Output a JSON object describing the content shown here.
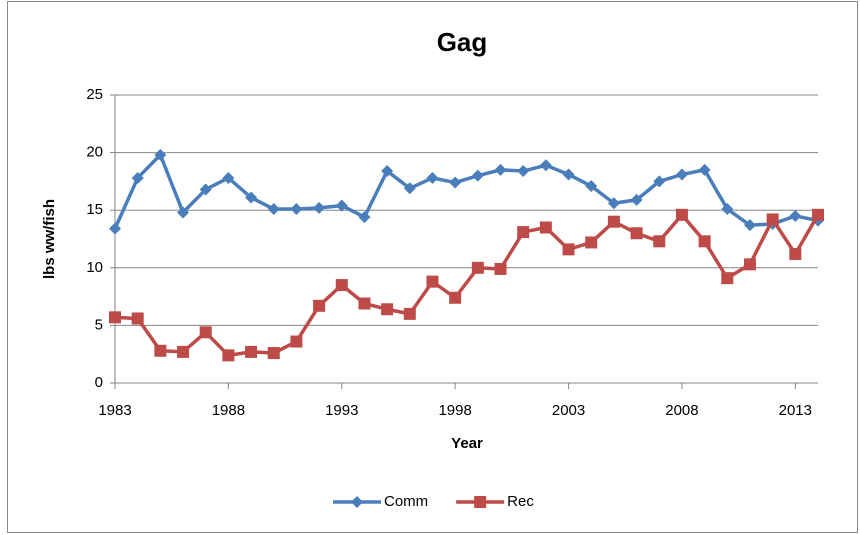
{
  "chart_data": {
    "type": "line",
    "title": "Gag",
    "x_label": "Year",
    "y_label": "lbs ww/fish",
    "x": [
      1983,
      1984,
      1985,
      1986,
      1987,
      1988,
      1989,
      1990,
      1991,
      1992,
      1993,
      1994,
      1995,
      1996,
      1997,
      1998,
      1999,
      2000,
      2001,
      2002,
      2003,
      2004,
      2005,
      2006,
      2007,
      2008,
      2009,
      2010,
      2011,
      2012,
      2013,
      2014
    ],
    "series": [
      {
        "name": "Comm",
        "color": "#4a7ebb",
        "marker": "diamond",
        "values": [
          13.4,
          17.8,
          19.8,
          14.8,
          16.8,
          17.8,
          16.1,
          15.1,
          15.1,
          15.2,
          15.4,
          14.4,
          18.4,
          16.9,
          17.8,
          17.4,
          18.0,
          18.5,
          18.4,
          18.9,
          18.1,
          17.1,
          15.6,
          15.9,
          17.5,
          18.1,
          18.5,
          15.1,
          13.7,
          13.8,
          14.5,
          14.1
        ]
      },
      {
        "name": "Rec",
        "color": "#be4b48",
        "marker": "square",
        "values": [
          5.7,
          5.6,
          2.8,
          2.7,
          4.4,
          2.4,
          2.7,
          2.6,
          3.6,
          6.7,
          8.5,
          6.9,
          6.4,
          6.0,
          8.8,
          7.4,
          10.0,
          9.9,
          13.1,
          13.5,
          11.6,
          12.2,
          14.0,
          13.0,
          12.3,
          14.6,
          12.3,
          9.1,
          10.3,
          14.2,
          11.2,
          14.6
        ]
      }
    ],
    "xlim": [
      1983,
      2014
    ],
    "xticks": [
      1983,
      1988,
      1993,
      1998,
      2003,
      2008,
      2013
    ],
    "ylim": [
      0,
      25
    ],
    "yticks": [
      0,
      5,
      10,
      15,
      20,
      25
    ],
    "grid": true,
    "legend": "bottom"
  }
}
